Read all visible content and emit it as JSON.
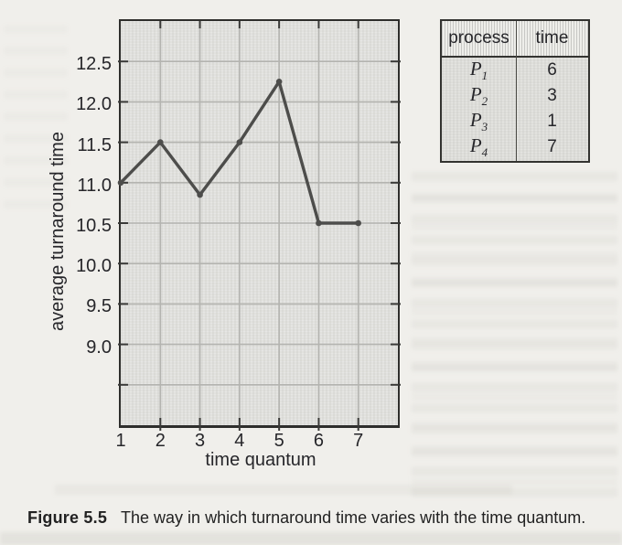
{
  "chart_data": {
    "type": "line",
    "x": [
      1,
      2,
      3,
      4,
      5,
      6,
      7
    ],
    "values": [
      11.0,
      11.5,
      10.85,
      11.5,
      12.25,
      10.5,
      10.5
    ],
    "title": "",
    "xlabel": "time quantum",
    "ylabel": "average turnaround time",
    "xlim": [
      1,
      8
    ],
    "ylim": [
      8.0,
      13.0
    ],
    "xticks": [
      1,
      2,
      3,
      4,
      5,
      6,
      7
    ],
    "yticks": [
      9.0,
      9.5,
      10.0,
      10.5,
      11.0,
      11.5,
      12.0,
      12.5
    ],
    "grid": true,
    "line_color": "#4d4d4b"
  },
  "table": {
    "headers": [
      "process",
      "time"
    ],
    "rows": [
      {
        "process": "P",
        "sub": "1",
        "time": "6"
      },
      {
        "process": "P",
        "sub": "2",
        "time": "3"
      },
      {
        "process": "P",
        "sub": "3",
        "time": "1"
      },
      {
        "process": "P",
        "sub": "4",
        "time": "7"
      }
    ]
  },
  "caption": {
    "label": "Figure 5.5",
    "text": "The way in which turnaround time varies with the time quantum."
  }
}
